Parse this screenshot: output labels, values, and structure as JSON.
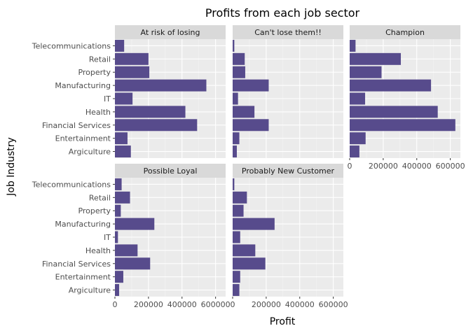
{
  "chart_data": {
    "type": "bar",
    "orientation": "horizontal",
    "title": "Profits from each job sector",
    "xlabel": "Profit",
    "ylabel": "Job Industry",
    "xlim": [
      0,
      660000
    ],
    "x_ticks": [
      0,
      200000,
      400000,
      600000
    ],
    "x_tick_labels": [
      "0",
      "200000",
      "400000",
      "600000"
    ],
    "categories": [
      "Argiculture",
      "Entertainment",
      "Financial Services",
      "Health",
      "IT",
      "Manufacturing",
      "Property",
      "Retail",
      "Telecommunications"
    ],
    "grid": true,
    "legend": "none",
    "colors": {
      "bar": "#574b8c",
      "panel_bg": "#ebebeb",
      "strip_bg": "#d9d9d9",
      "grid_major": "#ffffff",
      "grid_minor": "#f4f4f4",
      "tick_label": "#4d4d4d"
    },
    "facets": [
      {
        "name": "At risk of losing",
        "values": [
          95000,
          75000,
          490000,
          420000,
          105000,
          545000,
          205000,
          200000,
          55000
        ]
      },
      {
        "name": "Can't lose them!!",
        "values": [
          25000,
          40000,
          215000,
          130000,
          32000,
          215000,
          75000,
          72000,
          10000
        ]
      },
      {
        "name": "Champion",
        "values": [
          58000,
          95000,
          630000,
          525000,
          92000,
          485000,
          190000,
          305000,
          35000
        ]
      },
      {
        "name": "Possible Loyal",
        "values": [
          25000,
          50000,
          210000,
          135000,
          18000,
          235000,
          35000,
          90000,
          40000
        ]
      },
      {
        "name": "Probably New Customer",
        "values": [
          40000,
          45000,
          195000,
          135000,
          45000,
          250000,
          65000,
          85000,
          10000
        ]
      }
    ]
  }
}
